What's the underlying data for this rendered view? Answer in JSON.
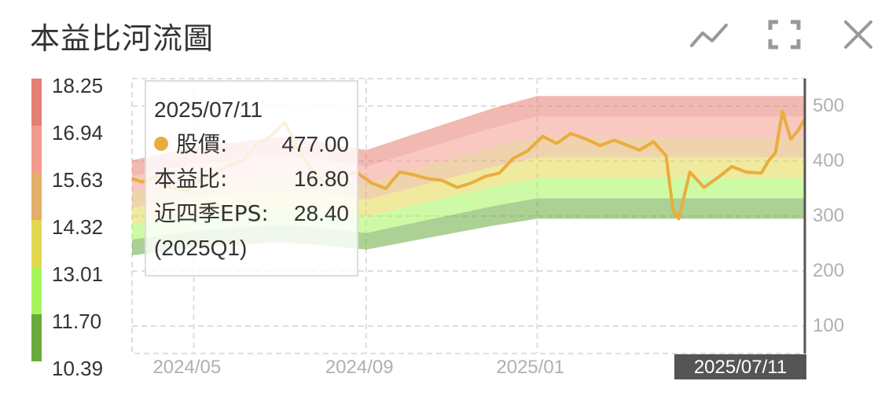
{
  "header": {
    "title": "本益比河流圖",
    "icons": [
      "line-chart-icon",
      "fullscreen-icon",
      "close-icon"
    ]
  },
  "legend": {
    "labels": [
      "18.25",
      "16.94",
      "15.63",
      "14.32",
      "13.01",
      "11.70",
      "10.39"
    ],
    "colors": [
      "#e57f73",
      "#f39a8e",
      "#e2ae6a",
      "#e3d84f",
      "#a6f55d",
      "#6aaa3c"
    ]
  },
  "tooltip": {
    "date": "2025/07/11",
    "price_label": "股價:",
    "price_value": "477.00",
    "pe_label": "本益比:",
    "pe_value": "16.80",
    "eps_label": "近四季EPS:",
    "eps_value": "28.40",
    "quarter": "(2025Q1)",
    "dot_color": "#e9ad3c"
  },
  "cursor": {
    "label": "2025/07/11",
    "date": "2025/07/11"
  },
  "chart_data": {
    "type": "area",
    "title": "本益比河流圖",
    "x_tick_labels": [
      "2024/05",
      "2024/09",
      "2025/01"
    ],
    "x_tick_dates": [
      "2024/05/01",
      "2024/09/01",
      "2025/01/01"
    ],
    "y_tick_labels": [
      "100",
      "200",
      "300",
      "400",
      "500"
    ],
    "ylim": [
      50,
      550
    ],
    "xlim": [
      "2024/03/18",
      "2025/07/11"
    ],
    "grid": true,
    "pe_multiples": [
      10.39,
      11.7,
      13.01,
      14.32,
      15.63,
      16.94,
      18.25
    ],
    "band_colors": [
      "#6aaa3c",
      "#a6f55d",
      "#e3d84f",
      "#e2ae6a",
      "#f39a8e",
      "#e57f73"
    ],
    "eps_dates": [
      "2024/03/18",
      "2024/05/01",
      "2024/07/01",
      "2024/08/01",
      "2024/09/01",
      "2024/10/01",
      "2024/12/01",
      "2025/01/01",
      "2025/07/11"
    ],
    "eps_values": [
      22.0,
      23.3,
      24.3,
      23.8,
      23.0,
      24.4,
      27.2,
      28.4,
      28.4
    ],
    "price_series": {
      "name": "股價",
      "color": "#e9ad3c",
      "dates": [
        "2024/03/18",
        "2024/03/25",
        "2024/04/05",
        "2024/04/15",
        "2024/04/25",
        "2024/05/05",
        "2024/05/15",
        "2024/05/25",
        "2024/06/05",
        "2024/06/15",
        "2024/06/25",
        "2024/07/05",
        "2024/07/15",
        "2024/07/25",
        "2024/08/05",
        "2024/08/15",
        "2024/08/25",
        "2024/09/05",
        "2024/09/15",
        "2024/09/25",
        "2024/10/05",
        "2024/10/15",
        "2024/10/25",
        "2024/11/05",
        "2024/11/15",
        "2024/11/25",
        "2024/12/05",
        "2024/12/15",
        "2024/12/25",
        "2025/01/05",
        "2025/01/15",
        "2025/01/25",
        "2025/02/05",
        "2025/02/15",
        "2025/02/25",
        "2025/03/05",
        "2025/03/15",
        "2025/03/25",
        "2025/04/03",
        "2025/04/08",
        "2025/04/12",
        "2025/04/20",
        "2025/04/30",
        "2025/05/10",
        "2025/05/20",
        "2025/05/30",
        "2025/06/10",
        "2025/06/15",
        "2025/06/20",
        "2025/06/25",
        "2025/07/01",
        "2025/07/06",
        "2025/07/11"
      ],
      "values": [
        368,
        362,
        372,
        352,
        345,
        365,
        375,
        390,
        400,
        430,
        445,
        470,
        420,
        380,
        355,
        370,
        380,
        360,
        350,
        380,
        375,
        368,
        365,
        352,
        360,
        372,
        378,
        405,
        418,
        445,
        432,
        450,
        440,
        428,
        438,
        430,
        420,
        435,
        410,
        310,
        295,
        380,
        352,
        370,
        390,
        380,
        378,
        400,
        415,
        490,
        440,
        455,
        477
      ]
    }
  }
}
